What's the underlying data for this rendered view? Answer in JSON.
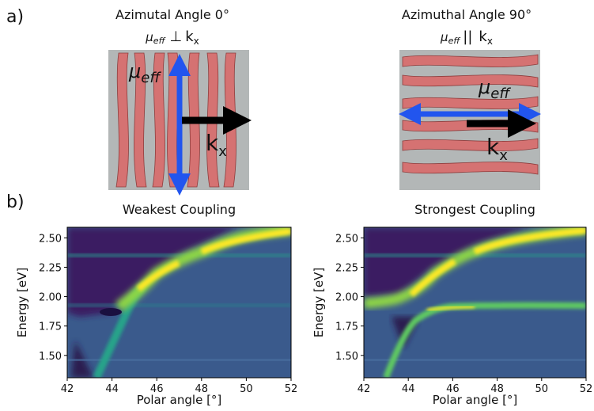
{
  "panel_labels": [
    "a)",
    "b)"
  ],
  "schematics": [
    {
      "title": "Azimutal Angle 0°",
      "mu": "μ",
      "mu_sub": "eff",
      "symbol": "⊥",
      "k": "k",
      "k_sub": "x"
    },
    {
      "title": "Azimuthal Angle 90°",
      "mu": "μ",
      "mu_sub": "eff",
      "symbol": "||",
      "k": "k",
      "k_sub": "x"
    }
  ],
  "chart_data": [
    {
      "type": "heatmap",
      "title": "Weakest Coupling",
      "xlabel": "Polar angle [°]",
      "ylabel": "Energy [eV]",
      "xlim": [
        42,
        52
      ],
      "xticks": [
        42,
        44,
        46,
        48,
        50,
        52
      ],
      "ylim": [
        1.31,
        2.59
      ],
      "yticks": [
        {
          "value": 1.5,
          "label": "1.50"
        },
        {
          "value": 1.75,
          "label": "1.75"
        },
        {
          "value": 2.0,
          "label": "2.00"
        },
        {
          "value": 2.25,
          "label": "2.25"
        },
        {
          "value": 2.5,
          "label": "2.50"
        }
      ]
    },
    {
      "type": "heatmap",
      "title": "Strongest Coupling",
      "xlabel": "Polar angle [°]",
      "ylabel": "Energy [eV]",
      "xlim": [
        42,
        52
      ],
      "xticks": [
        42,
        44,
        46,
        48,
        50,
        52
      ],
      "ylim": [
        1.31,
        2.59
      ],
      "yticks": [
        {
          "value": 1.5,
          "label": "1.50"
        },
        {
          "value": 1.75,
          "label": "1.75"
        },
        {
          "value": 2.0,
          "label": "2.00"
        },
        {
          "value": 2.25,
          "label": "2.25"
        },
        {
          "value": 2.5,
          "label": "2.50"
        }
      ]
    }
  ]
}
